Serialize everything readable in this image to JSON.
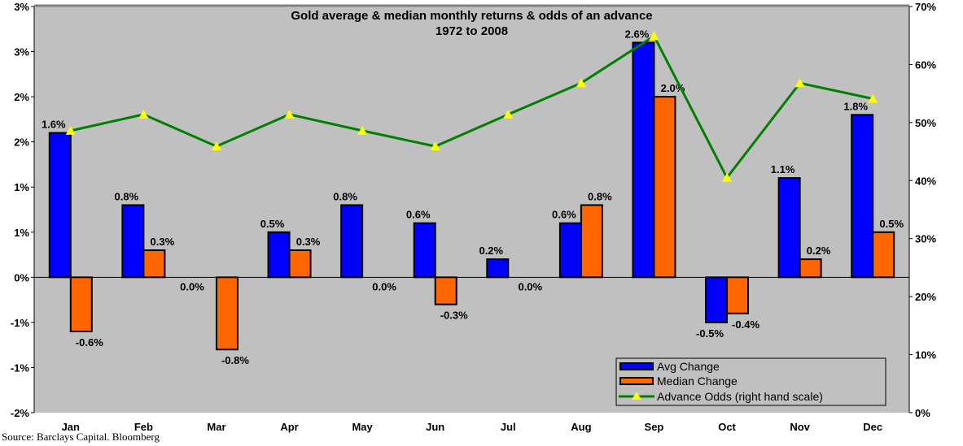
{
  "chart_data": {
    "type": "bar",
    "title": "Gold average & median monthly returns & odds of an advance",
    "subtitle": "1972 to 2008",
    "categories": [
      "Jan",
      "Feb",
      "Mar",
      "Apr",
      "May",
      "Jun",
      "Jul",
      "Aug",
      "Sep",
      "Oct",
      "Nov",
      "Dec"
    ],
    "series": [
      {
        "name": "Avg Change",
        "type": "bar",
        "axis": "left",
        "color": "#0000ff",
        "values": [
          1.6,
          0.8,
          0.0,
          0.5,
          0.8,
          0.6,
          0.2,
          0.6,
          2.6,
          -0.5,
          1.1,
          1.8
        ]
      },
      {
        "name": "Median Change",
        "type": "bar",
        "axis": "left",
        "color": "#ff6600",
        "values": [
          -0.6,
          0.3,
          -0.8,
          0.3,
          0.0,
          -0.3,
          0.0,
          0.8,
          2.0,
          -0.4,
          0.2,
          0.5
        ]
      },
      {
        "name": "Advance Odds (right hand scale)",
        "type": "line",
        "axis": "right",
        "color": "#008000",
        "marker_color": "#ffff00",
        "values": [
          48.6,
          51.4,
          45.9,
          51.4,
          48.6,
          45.9,
          51.4,
          56.8,
          64.9,
          40.5,
          56.8,
          54.1
        ]
      }
    ],
    "data_labels": {
      "Avg Change": [
        "1.6%",
        "0.8%",
        "0.0%",
        "0.5%",
        "0.8%",
        "0.6%",
        "0.2%",
        "0.6%",
        "2.6%",
        "-0.5%",
        "1.1%",
        "1.8%"
      ],
      "Median Change": [
        "-0.6%",
        "0.3%",
        "-0.8%",
        "0.3%",
        "0.0%",
        "-0.3%",
        "0.0%",
        "0.8%",
        "2.0%",
        "-0.4%",
        "0.2%",
        "0.5%"
      ]
    },
    "y_left": {
      "ylim": [
        -1.5,
        3.0
      ],
      "ticks": [
        3.0,
        2.5,
        2.0,
        1.5,
        1.0,
        0.5,
        0,
        -0.5,
        -1.0,
        -1.5
      ],
      "tick_labels": [
        "3%",
        "3%",
        "2%",
        "2%",
        "1%",
        "1%",
        "0%",
        "-1%",
        "-1%",
        "-2%"
      ]
    },
    "y_right": {
      "ylim": [
        0,
        70
      ],
      "ticks": [
        70,
        60,
        50,
        40,
        30,
        20,
        10,
        0
      ],
      "tick_labels": [
        "70%",
        "60%",
        "50%",
        "40%",
        "30%",
        "20%",
        "10%",
        "0%"
      ]
    },
    "grid": false,
    "legend": "bottom-right",
    "background": "#c0c0c0"
  },
  "source": "Source: Barclays Capital. Bloomberg"
}
